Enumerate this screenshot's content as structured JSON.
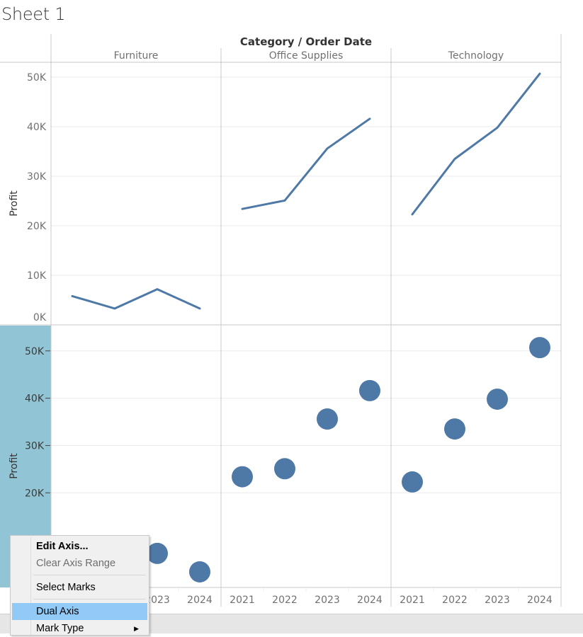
{
  "sheet": {
    "title": "Sheet 1"
  },
  "context_menu": {
    "items": [
      {
        "label": "Edit Axis...",
        "style": "bold"
      },
      {
        "label": "Clear Axis Range",
        "style": "disabled"
      },
      {
        "label": "Select Marks",
        "style": "normal"
      },
      {
        "label": "Dual Axis",
        "style": "highlighted"
      },
      {
        "label": "Mark Type",
        "style": "submenu"
      }
    ]
  },
  "colors": {
    "mark": "#4e79a7",
    "axis_highlight": "#91c5d5",
    "menu_highlight": "#91c9f7",
    "grid": "#ebebeb",
    "border": "#c8c8c8"
  },
  "chart_data": {
    "type": "line",
    "header_title": "Category / Order Date",
    "categories": [
      "Furniture",
      "Office Supplies",
      "Technology"
    ],
    "x": [
      "2021",
      "2022",
      "2023",
      "2024"
    ],
    "ylabel": "Profit",
    "panes": [
      {
        "mark": "line",
        "ylim": [
          0,
          53000
        ],
        "ticks": [
          0,
          10000,
          20000,
          30000,
          40000,
          50000
        ],
        "tick_labels": [
          "0K",
          "10K",
          "20K",
          "30K",
          "40K",
          "50K"
        ]
      },
      {
        "mark": "circle",
        "ylim": [
          0,
          55500
        ],
        "ticks": [
          20000,
          30000,
          40000,
          50000
        ],
        "tick_labels": [
          "20K",
          "30K",
          "40K",
          "50K"
        ],
        "highlighted_axis": true
      }
    ],
    "series": [
      {
        "name": "Furniture",
        "values": [
          5800,
          3300,
          7200,
          3300
        ]
      },
      {
        "name": "Office Supplies",
        "values": [
          23400,
          25100,
          35600,
          41600
        ]
      },
      {
        "name": "Technology",
        "values": [
          22300,
          33500,
          39800,
          50700
        ]
      }
    ]
  }
}
